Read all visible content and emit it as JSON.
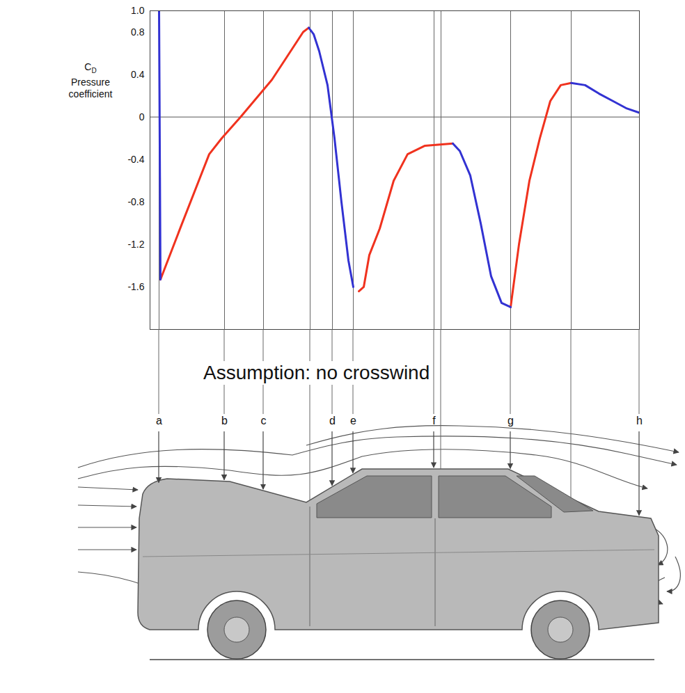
{
  "chart_data": {
    "type": "line",
    "y_label_symbol": "C",
    "y_label_subscript": "D",
    "y_label": "Pressure coefficient",
    "annotation": "Assumption: no crosswind",
    "x": [
      228,
      230,
      260,
      300,
      318,
      345,
      390,
      410,
      435,
      443,
      450,
      458,
      470,
      480,
      490,
      500,
      507,
      515,
      522,
      530,
      545,
      565,
      585,
      610,
      650,
      660,
      675,
      690,
      705,
      720,
      733,
      745,
      760,
      775,
      790,
      805,
      820,
      840,
      860,
      880,
      900,
      918
    ],
    "xlim": [
      215,
      918
    ],
    "xticks": [
      {
        "value": 228,
        "label": "a"
      },
      {
        "value": 322,
        "label": "b"
      },
      {
        "value": 378,
        "label": "c"
      },
      {
        "value": 445,
        "label": null
      },
      {
        "value": 477,
        "label": "d"
      },
      {
        "value": 507,
        "label": "e"
      },
      {
        "value": 623,
        "label": "f"
      },
      {
        "value": 633,
        "label": null
      },
      {
        "value": 733,
        "label": "g"
      },
      {
        "value": 820,
        "label": null
      },
      {
        "value": 918,
        "label": "h"
      }
    ],
    "ylim": [
      -2.0,
      1.0
    ],
    "yticks": [
      {
        "value": 1,
        "label": "1.0"
      },
      0.8,
      0.4,
      0,
      -0.4,
      -0.8,
      -1.2,
      -1.6
    ],
    "grid": false,
    "series": [
      {
        "color": "#f0321e",
        "line_style": "solid",
        "values": [
          null,
          -1.53,
          -1.02,
          -0.35,
          -0.2,
          0,
          0.35,
          0.55,
          0.8,
          0.84,
          null,
          null,
          null,
          null,
          null,
          null,
          null,
          -1.64,
          -1.6,
          -1.3,
          -1.05,
          -0.6,
          -0.35,
          -0.27,
          -0.25,
          null,
          null,
          null,
          null,
          null,
          -1.79,
          -1.2,
          -0.6,
          -0.2,
          0.15,
          0.3,
          0.32,
          null,
          null,
          null,
          null,
          null
        ]
      },
      {
        "color": "#3232d2",
        "line_style": "solid",
        "values": [
          1.0,
          -1.53,
          null,
          null,
          null,
          null,
          null,
          null,
          null,
          0.84,
          0.78,
          0.62,
          0.3,
          -0.2,
          -0.8,
          -1.35,
          -1.6,
          null,
          null,
          null,
          null,
          null,
          null,
          null,
          -0.25,
          -0.32,
          -0.55,
          -1.0,
          -1.5,
          -1.75,
          -1.79,
          null,
          null,
          null,
          null,
          null,
          0.32,
          0.3,
          0.22,
          0.15,
          0.08,
          0.04
        ]
      }
    ]
  }
}
